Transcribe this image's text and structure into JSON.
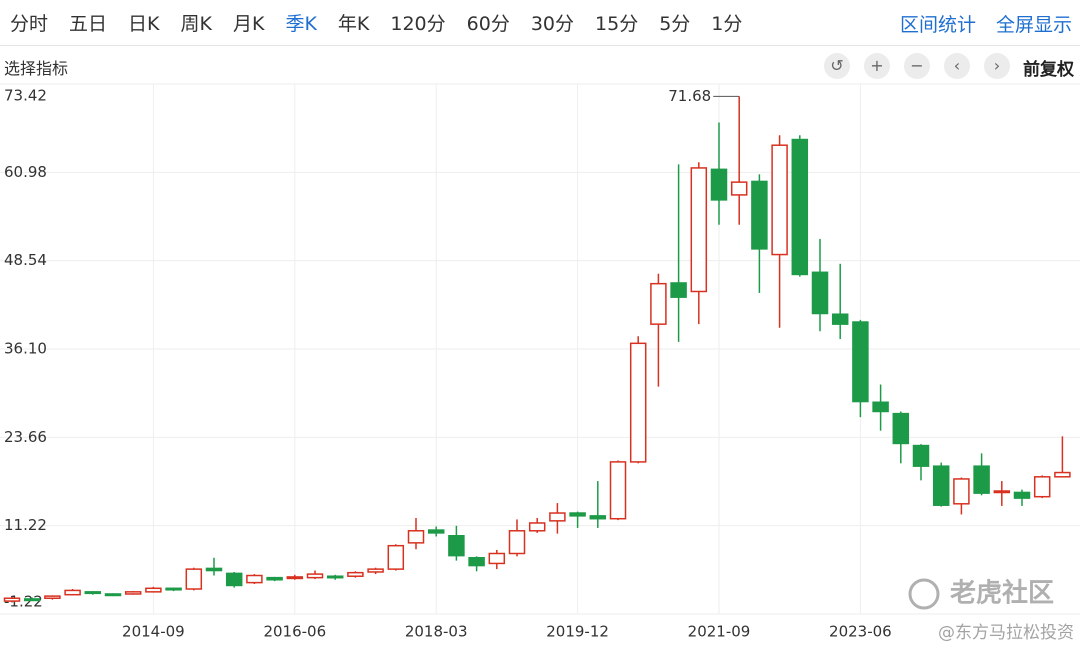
{
  "toolbar": {
    "periods": [
      "分时",
      "五日",
      "日K",
      "周K",
      "月K",
      "季K",
      "年K",
      "120分",
      "60分",
      "30分",
      "15分",
      "5分",
      "1分"
    ],
    "actions": [
      "区间统计",
      "全屏显示"
    ],
    "indicator": "选择指标",
    "adjust": "前复权"
  },
  "watermark": [
    "老虎社区",
    "@东方马拉松投资"
  ],
  "chart_data": {
    "type": "candlestick",
    "categories": [
      null,
      null,
      null,
      null,
      null,
      null,
      null,
      "2014-09",
      null,
      null,
      null,
      null,
      null,
      null,
      "2016-06",
      null,
      null,
      null,
      null,
      null,
      null,
      "2018-03",
      null,
      null,
      null,
      null,
      null,
      null,
      "2019-12",
      null,
      null,
      null,
      null,
      null,
      null,
      "2021-09",
      null,
      null,
      null,
      null,
      null,
      null,
      "2023-06",
      null,
      null,
      null,
      null,
      null,
      null,
      null,
      null,
      null,
      null
    ],
    "open": [
      0.6,
      0.9,
      1.0,
      1.5,
      1.9,
      1.6,
      1.6,
      1.9,
      2.4,
      2.3,
      5.2,
      4.5,
      3.2,
      3.9,
      3.8,
      3.9,
      4.1,
      4.1,
      4.7,
      5.1,
      8.8,
      10.6,
      9.8,
      6.7,
      5.9,
      7.3,
      10.5,
      11.9,
      13.0,
      12.6,
      12.2,
      20.2,
      39.6,
      45.4,
      44.2,
      61.4,
      57.8,
      59.7,
      49.4,
      65.6,
      46.9,
      41.0,
      39.9,
      28.6,
      27.0,
      22.5,
      19.6,
      14.3,
      19.6,
      15.9,
      15.9,
      15.3,
      18.1
    ],
    "high": [
      1.2,
      1.1,
      1.4,
      2.3,
      2.0,
      1.7,
      2.0,
      2.6,
      2.5,
      5.3,
      6.7,
      4.7,
      4.4,
      4.0,
      4.3,
      4.9,
      4.3,
      4.8,
      5.3,
      8.6,
      12.3,
      11.1,
      11.2,
      6.9,
      7.8,
      12.1,
      12.3,
      14.4,
      13.2,
      17.5,
      20.4,
      37.9,
      46.7,
      62.1,
      62.4,
      68.0,
      71.68,
      60.7,
      66.2,
      66.2,
      51.6,
      48.1,
      40.2,
      31.1,
      27.3,
      22.7,
      20.1,
      18.0,
      21.4,
      17.5,
      16.3,
      18.3,
      23.8
    ],
    "low": [
      0.4,
      0.6,
      0.8,
      1.4,
      1.5,
      1.3,
      1.5,
      1.8,
      2.0,
      2.1,
      4.2,
      2.5,
      3.0,
      3.4,
      3.6,
      3.7,
      3.6,
      3.9,
      4.4,
      4.9,
      7.9,
      9.7,
      6.3,
      4.8,
      5.1,
      6.9,
      10.2,
      10.1,
      10.9,
      10.9,
      12.0,
      20.0,
      30.8,
      37.1,
      39.6,
      53.6,
      53.6,
      44.0,
      39.1,
      46.3,
      38.6,
      37.5,
      26.5,
      24.6,
      20.0,
      17.6,
      13.9,
      12.8,
      15.5,
      14.0,
      14.0,
      15.1,
      18.0
    ],
    "close": [
      1.0,
      0.8,
      1.3,
      2.1,
      1.7,
      1.5,
      1.9,
      2.4,
      2.2,
      5.1,
      4.9,
      2.8,
      4.2,
      3.6,
      4.0,
      4.4,
      3.9,
      4.6,
      5.1,
      8.4,
      10.5,
      10.2,
      7.0,
      5.6,
      7.3,
      10.5,
      11.6,
      13.0,
      12.6,
      12.2,
      20.2,
      36.9,
      45.3,
      43.4,
      61.6,
      57.1,
      59.6,
      50.2,
      64.8,
      46.6,
      41.1,
      39.6,
      28.7,
      27.3,
      22.8,
      19.6,
      14.1,
      17.8,
      15.8,
      16.1,
      15.1,
      18.1,
      18.7
    ],
    "up_color": "#d8311f",
    "down_color": "#1d9a48",
    "ylim": [
      -1.22,
      73.42
    ],
    "yticks": [
      -1.22,
      11.22,
      23.66,
      {
        "value": 36.1,
        "label": "36.10"
      },
      48.54,
      60.98,
      73.42
    ],
    "grid": true
  }
}
